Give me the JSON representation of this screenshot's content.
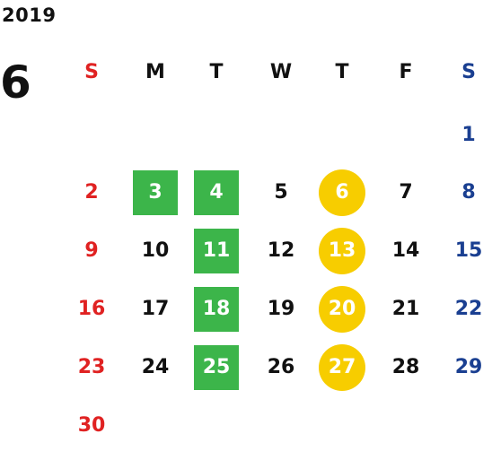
{
  "header": {
    "year": "2019",
    "month": "6"
  },
  "colors": {
    "sunday": "#e02222",
    "saturday": "#1a3f91",
    "weekday": "#111111",
    "green_highlight": "#3cb54a",
    "yellow_highlight": "#f7cd00"
  },
  "weekdays": [
    {
      "label": "S",
      "type": "sunday"
    },
    {
      "label": "M",
      "type": "weekday"
    },
    {
      "label": "T",
      "type": "weekday"
    },
    {
      "label": "W",
      "type": "weekday"
    },
    {
      "label": "T",
      "type": "weekday"
    },
    {
      "label": "F",
      "type": "weekday"
    },
    {
      "label": "S",
      "type": "saturday"
    }
  ],
  "days": [
    {
      "label": "1",
      "row": 0,
      "col": 6,
      "highlight": null
    },
    {
      "label": "2",
      "row": 1,
      "col": 0,
      "highlight": null
    },
    {
      "label": "3",
      "row": 1,
      "col": 1,
      "highlight": "green"
    },
    {
      "label": "4",
      "row": 1,
      "col": 2,
      "highlight": "green"
    },
    {
      "label": "5",
      "row": 1,
      "col": 3,
      "highlight": null
    },
    {
      "label": "6",
      "row": 1,
      "col": 4,
      "highlight": "yellow"
    },
    {
      "label": "7",
      "row": 1,
      "col": 5,
      "highlight": null
    },
    {
      "label": "8",
      "row": 1,
      "col": 6,
      "highlight": null
    },
    {
      "label": "9",
      "row": 2,
      "col": 0,
      "highlight": null
    },
    {
      "label": "10",
      "row": 2,
      "col": 1,
      "highlight": null
    },
    {
      "label": "11",
      "row": 2,
      "col": 2,
      "highlight": "green"
    },
    {
      "label": "12",
      "row": 2,
      "col": 3,
      "highlight": null
    },
    {
      "label": "13",
      "row": 2,
      "col": 4,
      "highlight": "yellow"
    },
    {
      "label": "14",
      "row": 2,
      "col": 5,
      "highlight": null
    },
    {
      "label": "15",
      "row": 2,
      "col": 6,
      "highlight": null
    },
    {
      "label": "16",
      "row": 3,
      "col": 0,
      "highlight": null
    },
    {
      "label": "17",
      "row": 3,
      "col": 1,
      "highlight": null
    },
    {
      "label": "18",
      "row": 3,
      "col": 2,
      "highlight": "green"
    },
    {
      "label": "19",
      "row": 3,
      "col": 3,
      "highlight": null
    },
    {
      "label": "20",
      "row": 3,
      "col": 4,
      "highlight": "yellow"
    },
    {
      "label": "21",
      "row": 3,
      "col": 5,
      "highlight": null
    },
    {
      "label": "22",
      "row": 3,
      "col": 6,
      "highlight": null
    },
    {
      "label": "23",
      "row": 4,
      "col": 0,
      "highlight": null
    },
    {
      "label": "24",
      "row": 4,
      "col": 1,
      "highlight": null
    },
    {
      "label": "25",
      "row": 4,
      "col": 2,
      "highlight": "green"
    },
    {
      "label": "26",
      "row": 4,
      "col": 3,
      "highlight": null
    },
    {
      "label": "27",
      "row": 4,
      "col": 4,
      "highlight": "yellow"
    },
    {
      "label": "28",
      "row": 4,
      "col": 5,
      "highlight": null
    },
    {
      "label": "29",
      "row": 4,
      "col": 6,
      "highlight": null
    },
    {
      "label": "30",
      "row": 5,
      "col": 0,
      "highlight": null
    }
  ]
}
